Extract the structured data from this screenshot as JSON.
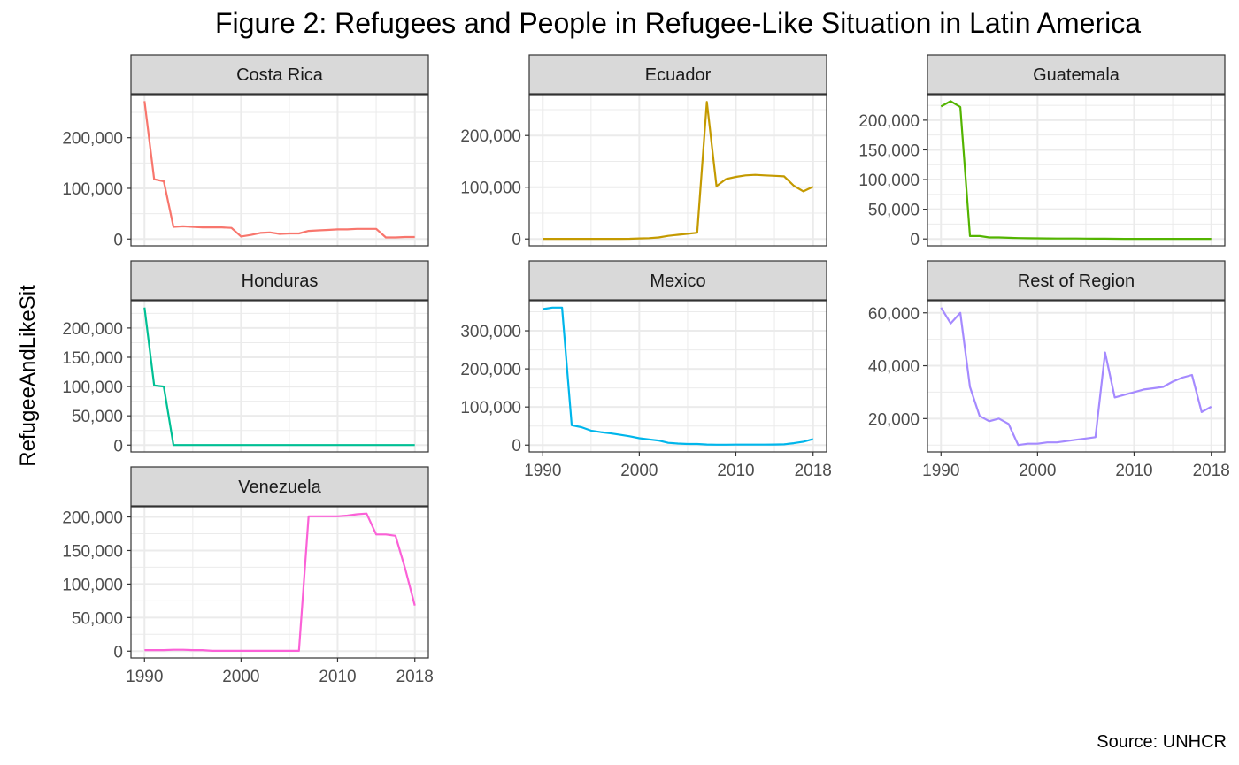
{
  "chart_data": {
    "type": "line",
    "title": "Figure 2: Refugees and People in Refugee-Like Situation in Latin America",
    "ylabel": "RefugeeAndLikeSit",
    "xlabel": "",
    "caption": "Source: UNHCR",
    "x_ticks": [
      1990,
      2000,
      2010,
      2018
    ],
    "x_tick_labels": [
      "1990",
      "2000",
      "2010",
      "2018"
    ],
    "xlim": [
      1990,
      2018
    ],
    "grid": true,
    "legend": "none",
    "facets": [
      {
        "name": "Costa Rica",
        "color": "#F8766D",
        "y_ticks": [
          0,
          100000,
          200000
        ],
        "y_tick_labels": [
          "0",
          "100,000",
          "200,000"
        ],
        "x": [
          1990,
          1991,
          1992,
          1993,
          1994,
          1995,
          1996,
          1997,
          1998,
          1999,
          2000,
          2001,
          2002,
          2003,
          2004,
          2005,
          2006,
          2007,
          2008,
          2009,
          2010,
          2011,
          2012,
          2013,
          2014,
          2015,
          2016,
          2017,
          2018
        ],
        "values": [
          272000,
          118000,
          114000,
          24000,
          25000,
          24000,
          23000,
          23000,
          23000,
          22000,
          5000,
          8000,
          12000,
          13000,
          10000,
          11000,
          11000,
          16000,
          17000,
          18000,
          19000,
          19000,
          20000,
          20000,
          20000,
          3000,
          3000,
          4000,
          4000
        ]
      },
      {
        "name": "Ecuador",
        "color": "#C49A00",
        "y_ticks": [
          0,
          100000,
          200000
        ],
        "y_tick_labels": [
          "0",
          "100,000",
          "200,000"
        ],
        "x": [
          1990,
          1991,
          1992,
          1993,
          1994,
          1995,
          1996,
          1997,
          1998,
          1999,
          2000,
          2001,
          2002,
          2003,
          2004,
          2005,
          2006,
          2007,
          2008,
          2009,
          2010,
          2011,
          2012,
          2013,
          2014,
          2015,
          2016,
          2017,
          2018
        ],
        "values": [
          200,
          200,
          200,
          200,
          200,
          200,
          200,
          200,
          200,
          300,
          1000,
          1500,
          3000,
          6000,
          8000,
          10000,
          12000,
          265000,
          102000,
          116000,
          120000,
          123000,
          124000,
          123000,
          122000,
          121000,
          103000,
          92000,
          101000
        ]
      },
      {
        "name": "Guatemala",
        "color": "#53B400",
        "y_ticks": [
          0,
          50000,
          100000,
          150000,
          200000
        ],
        "y_tick_labels": [
          "0",
          "50,000",
          "100,000",
          "150,000",
          "200,000"
        ],
        "x": [
          1990,
          1991,
          1992,
          1993,
          1994,
          1995,
          1996,
          1997,
          1998,
          1999,
          2000,
          2001,
          2002,
          2003,
          2004,
          2005,
          2006,
          2007,
          2008,
          2009,
          2010,
          2011,
          2012,
          2013,
          2014,
          2015,
          2016,
          2017,
          2018
        ],
        "values": [
          223000,
          232000,
          222000,
          5000,
          5000,
          2500,
          2500,
          2000,
          1500,
          1200,
          1000,
          900,
          800,
          800,
          700,
          600,
          500,
          400,
          300,
          200,
          200,
          150,
          150,
          150,
          100,
          100,
          100,
          100,
          100
        ]
      },
      {
        "name": "Honduras",
        "color": "#00C094",
        "y_ticks": [
          0,
          50000,
          100000,
          150000,
          200000
        ],
        "y_tick_labels": [
          "0",
          "50,000",
          "100,000",
          "150,000",
          "200,000"
        ],
        "x": [
          1990,
          1991,
          1992,
          1993,
          1994,
          1995,
          1996,
          1997,
          1998,
          1999,
          2000,
          2001,
          2002,
          2003,
          2004,
          2005,
          2006,
          2007,
          2008,
          2009,
          2010,
          2011,
          2012,
          2013,
          2014,
          2015,
          2016,
          2017,
          2018
        ],
        "values": [
          235000,
          102000,
          100000,
          100,
          100,
          100,
          100,
          100,
          100,
          100,
          100,
          100,
          100,
          100,
          100,
          100,
          100,
          100,
          100,
          100,
          100,
          100,
          100,
          100,
          100,
          100,
          100,
          100,
          100
        ]
      },
      {
        "name": "Mexico",
        "color": "#00B6EB",
        "y_ticks": [
          0,
          100000,
          200000,
          300000
        ],
        "y_tick_labels": [
          "0",
          "100,000",
          "200,000",
          "300,000"
        ],
        "x": [
          1990,
          1991,
          1992,
          1993,
          1994,
          1995,
          1996,
          1997,
          1998,
          1999,
          2000,
          2001,
          2002,
          2003,
          2004,
          2005,
          2006,
          2007,
          2008,
          2009,
          2010,
          2011,
          2012,
          2013,
          2014,
          2015,
          2016,
          2017,
          2018
        ],
        "values": [
          357000,
          361000,
          361000,
          52000,
          47000,
          38000,
          34000,
          31000,
          27000,
          23000,
          18000,
          15000,
          12000,
          6000,
          4000,
          3000,
          3000,
          1500,
          1000,
          1000,
          1200,
          1200,
          1200,
          1300,
          1500,
          2000,
          5000,
          9000,
          16000
        ]
      },
      {
        "name": "Rest of Region",
        "color": "#A58AFF",
        "y_ticks": [
          20000,
          40000,
          60000
        ],
        "y_tick_labels": [
          "20,000",
          "40,000",
          "60,000"
        ],
        "x": [
          1990,
          1991,
          1992,
          1993,
          1994,
          1995,
          1996,
          1997,
          1998,
          1999,
          2000,
          2001,
          2002,
          2003,
          2004,
          2005,
          2006,
          2007,
          2008,
          2009,
          2010,
          2011,
          2012,
          2013,
          2014,
          2015,
          2016,
          2017,
          2018
        ],
        "values": [
          62000,
          56000,
          60000,
          32000,
          21000,
          19000,
          20000,
          18000,
          10000,
          10500,
          10500,
          11000,
          11000,
          11500,
          12000,
          12500,
          13000,
          45000,
          28000,
          29000,
          30000,
          31000,
          31500,
          32000,
          34000,
          35500,
          36500,
          22500,
          24500
        ]
      },
      {
        "name": "Venezuela",
        "color": "#FB61D7",
        "y_ticks": [
          0,
          50000,
          100000,
          150000,
          200000
        ],
        "y_tick_labels": [
          "0",
          "50,000",
          "100,000",
          "150,000",
          "200,000"
        ],
        "x": [
          1990,
          1991,
          1992,
          1993,
          1994,
          1995,
          1996,
          1997,
          1998,
          1999,
          2000,
          2001,
          2002,
          2003,
          2004,
          2005,
          2006,
          2007,
          2008,
          2009,
          2010,
          2011,
          2012,
          2013,
          2014,
          2015,
          2016,
          2017,
          2018
        ],
        "values": [
          1500,
          1500,
          1500,
          2000,
          2000,
          1500,
          1500,
          500,
          500,
          500,
          500,
          500,
          500,
          500,
          500,
          500,
          500,
          201000,
          201000,
          201000,
          201000,
          202000,
          204000,
          205000,
          174000,
          174000,
          172000,
          123000,
          68000
        ]
      }
    ]
  }
}
